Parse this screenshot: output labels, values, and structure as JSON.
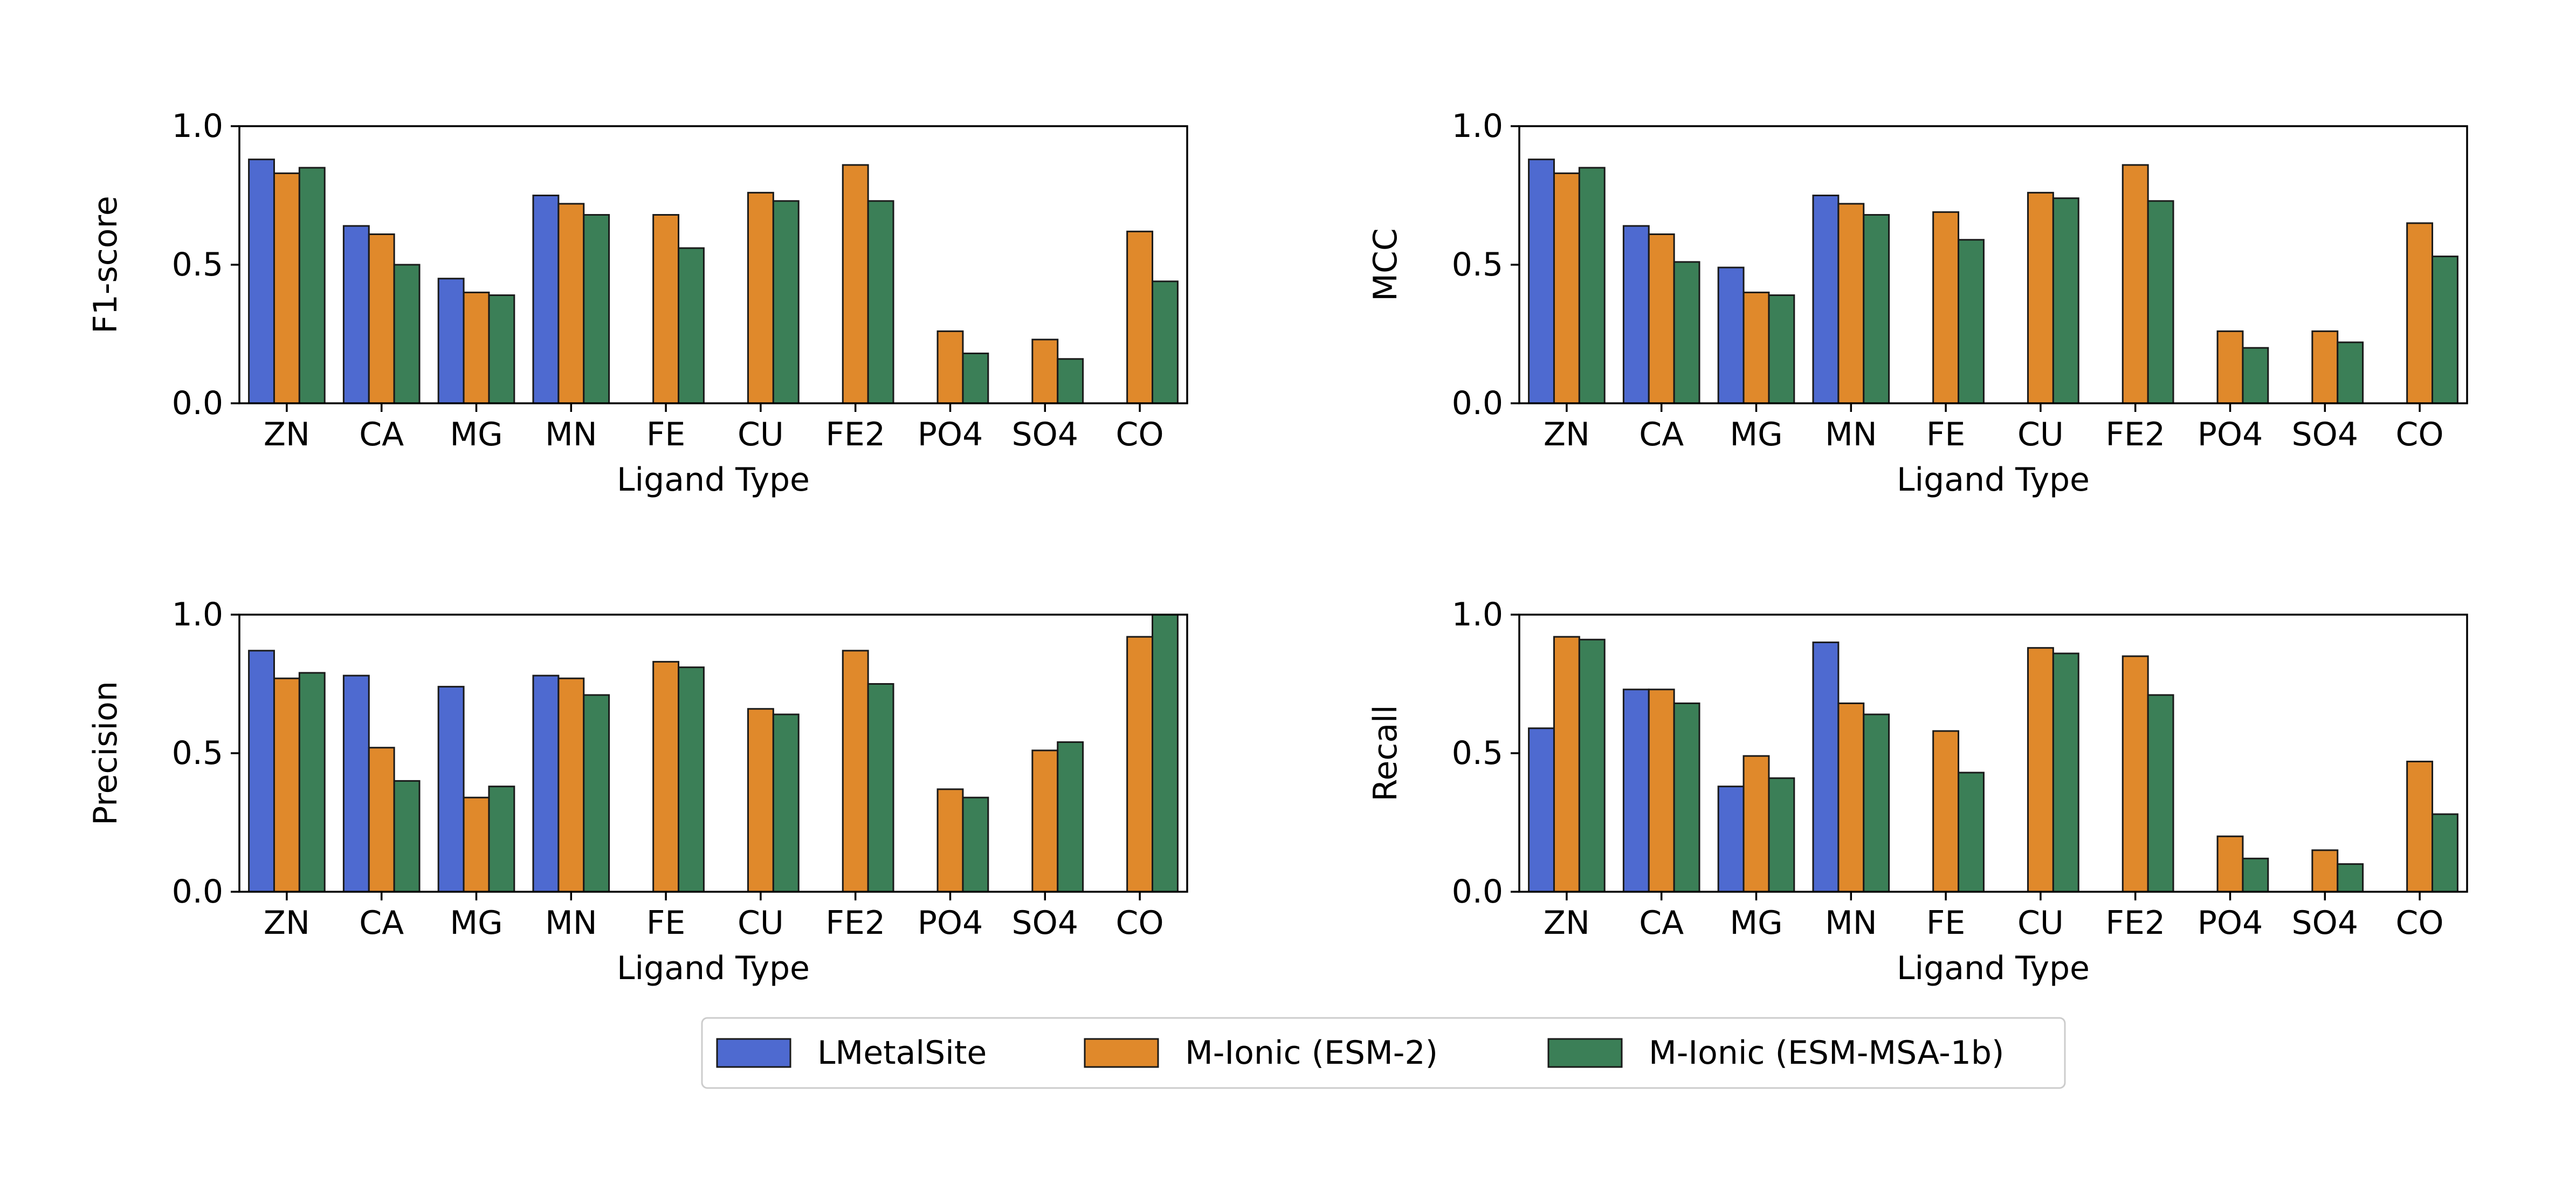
{
  "colors": {
    "LMetalSite": "#4e6ad0",
    "M-Ionic (ESM-2)": "#e0892b",
    "M-Ionic (ESM-MSA-1b)": "#3b7f57"
  },
  "legend": {
    "items": [
      "LMetalSite",
      "M-Ionic (ESM-2)",
      "M-Ionic (ESM-MSA-1b)"
    ],
    "placement": "bottom-center"
  },
  "chart_data": [
    {
      "type": "bar",
      "title": "",
      "xlabel": "Ligand Type",
      "ylabel": "F1-score",
      "ylim": [
        0,
        1
      ],
      "yticks": [
        "0.0",
        "0.5",
        "1.0"
      ],
      "categories": [
        "ZN",
        "CA",
        "MG",
        "MN",
        "FE",
        "CU",
        "FE2",
        "PO4",
        "SO4",
        "CO"
      ],
      "series": [
        {
          "name": "LMetalSite",
          "values": [
            0.88,
            0.64,
            0.45,
            0.75,
            null,
            null,
            null,
            null,
            null,
            null
          ]
        },
        {
          "name": "M-Ionic (ESM-2)",
          "values": [
            0.83,
            0.61,
            0.4,
            0.72,
            0.68,
            0.76,
            0.86,
            0.26,
            0.23,
            0.62
          ]
        },
        {
          "name": "M-Ionic (ESM-MSA-1b)",
          "values": [
            0.85,
            0.5,
            0.39,
            0.68,
            0.56,
            0.73,
            0.73,
            0.18,
            0.16,
            0.44
          ]
        }
      ]
    },
    {
      "type": "bar",
      "title": "",
      "xlabel": "Ligand Type",
      "ylabel": "MCC",
      "ylim": [
        0,
        1
      ],
      "yticks": [
        "0.0",
        "0.5",
        "1.0"
      ],
      "categories": [
        "ZN",
        "CA",
        "MG",
        "MN",
        "FE",
        "CU",
        "FE2",
        "PO4",
        "SO4",
        "CO"
      ],
      "series": [
        {
          "name": "LMetalSite",
          "values": [
            0.88,
            0.64,
            0.49,
            0.75,
            null,
            null,
            null,
            null,
            null,
            null
          ]
        },
        {
          "name": "M-Ionic (ESM-2)",
          "values": [
            0.83,
            0.61,
            0.4,
            0.72,
            0.69,
            0.76,
            0.86,
            0.26,
            0.26,
            0.65
          ]
        },
        {
          "name": "M-Ionic (ESM-MSA-1b)",
          "values": [
            0.85,
            0.51,
            0.39,
            0.68,
            0.59,
            0.74,
            0.73,
            0.2,
            0.22,
            0.53
          ]
        }
      ]
    },
    {
      "type": "bar",
      "title": "",
      "xlabel": "Ligand Type",
      "ylabel": "Precision",
      "ylim": [
        0,
        1
      ],
      "yticks": [
        "0.0",
        "0.5",
        "1.0"
      ],
      "categories": [
        "ZN",
        "CA",
        "MG",
        "MN",
        "FE",
        "CU",
        "FE2",
        "PO4",
        "SO4",
        "CO"
      ],
      "series": [
        {
          "name": "LMetalSite",
          "values": [
            0.87,
            0.78,
            0.74,
            0.78,
            null,
            null,
            null,
            null,
            null,
            null
          ]
        },
        {
          "name": "M-Ionic (ESM-2)",
          "values": [
            0.77,
            0.52,
            0.34,
            0.77,
            0.83,
            0.66,
            0.87,
            0.37,
            0.51,
            0.92
          ]
        },
        {
          "name": "M-Ionic (ESM-MSA-1b)",
          "values": [
            0.79,
            0.4,
            0.38,
            0.71,
            0.81,
            0.64,
            0.75,
            0.34,
            0.54,
            1.0
          ]
        }
      ]
    },
    {
      "type": "bar",
      "title": "",
      "xlabel": "Ligand Type",
      "ylabel": "Recall",
      "ylim": [
        0,
        1
      ],
      "yticks": [
        "0.0",
        "0.5",
        "1.0"
      ],
      "categories": [
        "ZN",
        "CA",
        "MG",
        "MN",
        "FE",
        "CU",
        "FE2",
        "PO4",
        "SO4",
        "CO"
      ],
      "series": [
        {
          "name": "LMetalSite",
          "values": [
            0.59,
            0.73,
            0.38,
            0.9,
            null,
            null,
            null,
            null,
            null,
            null
          ]
        },
        {
          "name": "M-Ionic (ESM-2)",
          "values": [
            0.92,
            0.73,
            0.49,
            0.68,
            0.58,
            0.88,
            0.85,
            0.2,
            0.15,
            0.47
          ]
        },
        {
          "name": "M-Ionic (ESM-MSA-1b)",
          "values": [
            0.91,
            0.68,
            0.41,
            0.64,
            0.43,
            0.86,
            0.71,
            0.12,
            0.1,
            0.28
          ]
        }
      ]
    }
  ]
}
